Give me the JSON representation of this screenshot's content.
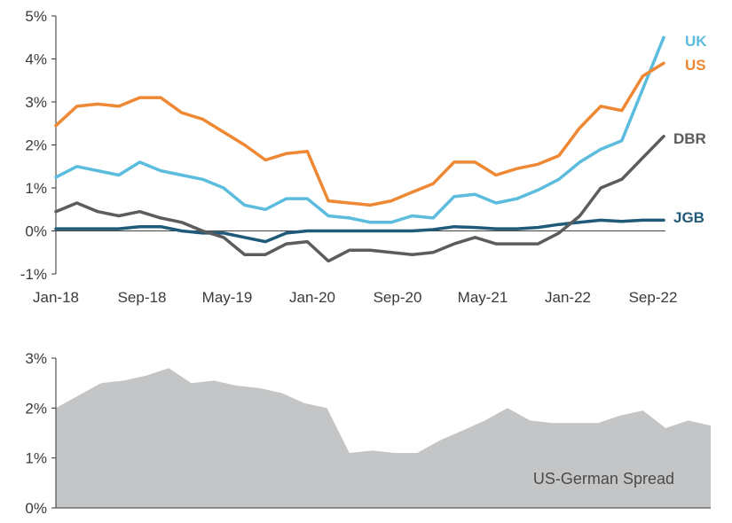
{
  "chart_data": [
    {
      "type": "line",
      "title": "",
      "xlabel": "",
      "ylabel": "",
      "x_ticks": [
        "Jan-18",
        "Sep-18",
        "May-19",
        "Jan-20",
        "Sep-20",
        "May-21",
        "Jan-22",
        "Sep-22"
      ],
      "y_ticks": [
        "5%",
        "4%",
        "3%",
        "2%",
        "1%",
        "0%",
        "-1%"
      ],
      "ylim": [
        -1,
        5
      ],
      "grid": false,
      "x": [
        "Jan-18",
        "Mar-18",
        "May-18",
        "Jul-18",
        "Sep-18",
        "Nov-18",
        "Jan-19",
        "Mar-19",
        "May-19",
        "Jul-19",
        "Sep-19",
        "Nov-19",
        "Jan-20",
        "Mar-20",
        "May-20",
        "Jul-20",
        "Sep-20",
        "Nov-20",
        "Jan-21",
        "Mar-21",
        "May-21",
        "Jul-21",
        "Sep-21",
        "Nov-21",
        "Jan-22",
        "Mar-22",
        "May-22",
        "Jul-22",
        "Sep-22",
        "Oct-22"
      ],
      "series": [
        {
          "name": "UK",
          "color": "#5bbcdd",
          "values": [
            1.25,
            1.5,
            1.4,
            1.3,
            1.6,
            1.4,
            1.3,
            1.2,
            1.0,
            0.6,
            0.5,
            0.75,
            0.75,
            0.35,
            0.3,
            0.2,
            0.2,
            0.35,
            0.3,
            0.8,
            0.85,
            0.65,
            0.75,
            0.95,
            1.2,
            1.6,
            1.9,
            2.1,
            3.3,
            4.5
          ]
        },
        {
          "name": "US",
          "color": "#ee8833",
          "values": [
            2.45,
            2.9,
            2.95,
            2.9,
            3.1,
            3.1,
            2.75,
            2.6,
            2.3,
            2.0,
            1.65,
            1.8,
            1.85,
            0.7,
            0.65,
            0.6,
            0.7,
            0.9,
            1.1,
            1.6,
            1.6,
            1.3,
            1.45,
            1.55,
            1.75,
            2.4,
            2.9,
            2.8,
            3.6,
            3.9
          ]
        },
        {
          "name": "DBR",
          "color": "#5a5c5e",
          "values": [
            0.45,
            0.65,
            0.45,
            0.35,
            0.45,
            0.3,
            0.2,
            0.0,
            -0.15,
            -0.55,
            -0.55,
            -0.3,
            -0.25,
            -0.7,
            -0.45,
            -0.45,
            -0.5,
            -0.55,
            -0.5,
            -0.3,
            -0.15,
            -0.3,
            -0.3,
            -0.3,
            -0.05,
            0.35,
            1.0,
            1.2,
            1.7,
            2.2
          ]
        },
        {
          "name": "JGB",
          "color": "#1f5a78",
          "values": [
            0.05,
            0.05,
            0.05,
            0.05,
            0.1,
            0.1,
            0.0,
            -0.05,
            -0.05,
            -0.15,
            -0.25,
            -0.05,
            0.0,
            0.0,
            0.0,
            0.0,
            0.0,
            0.0,
            0.03,
            0.1,
            0.08,
            0.05,
            0.05,
            0.08,
            0.15,
            0.2,
            0.25,
            0.22,
            0.25,
            0.25
          ]
        }
      ]
    },
    {
      "type": "area",
      "title": "",
      "annotation": "US-German Spread",
      "y_ticks": [
        "3%",
        "2%",
        "1%",
        "0%"
      ],
      "ylim": [
        0,
        3
      ],
      "grid": false,
      "color": "#c4c5c6",
      "x": [
        "Jan-18",
        "Mar-18",
        "May-18",
        "Jul-18",
        "Sep-18",
        "Nov-18",
        "Jan-19",
        "Mar-19",
        "May-19",
        "Jul-19",
        "Sep-19",
        "Nov-19",
        "Jan-20",
        "Mar-20",
        "May-20",
        "Jul-20",
        "Sep-20",
        "Nov-20",
        "Jan-21",
        "Mar-21",
        "May-21",
        "Jul-21",
        "Sep-21",
        "Nov-21",
        "Jan-22",
        "Mar-22",
        "May-22",
        "Jul-22",
        "Sep-22",
        "Oct-22"
      ],
      "values": [
        2.0,
        2.25,
        2.5,
        2.55,
        2.65,
        2.8,
        2.5,
        2.55,
        2.45,
        2.4,
        2.3,
        2.1,
        2.0,
        1.1,
        1.15,
        1.1,
        1.1,
        1.35,
        1.55,
        1.75,
        2.0,
        1.75,
        1.7,
        1.7,
        1.7,
        1.85,
        1.95,
        1.6,
        1.75,
        1.65
      ]
    }
  ]
}
